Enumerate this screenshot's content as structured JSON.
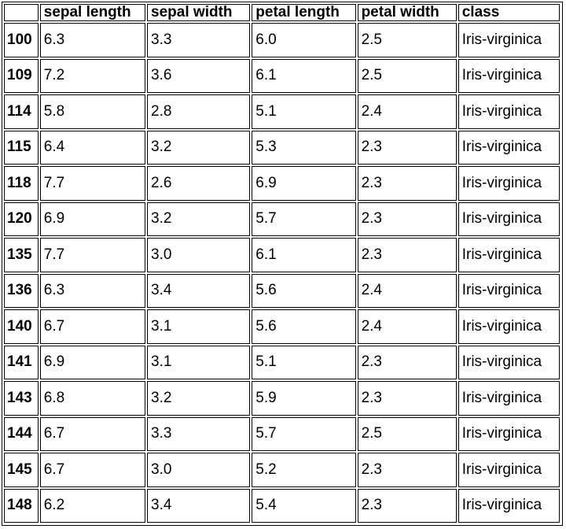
{
  "table": {
    "columns": [
      "",
      "sepal length",
      "sepal width",
      "petal length",
      "petal width",
      "class"
    ],
    "rows": [
      {
        "index": "100",
        "cells": [
          "6.3",
          "3.3",
          "6.0",
          "2.5",
          "Iris-virginica"
        ]
      },
      {
        "index": "109",
        "cells": [
          "7.2",
          "3.6",
          "6.1",
          "2.5",
          "Iris-virginica"
        ]
      },
      {
        "index": "114",
        "cells": [
          "5.8",
          "2.8",
          "5.1",
          "2.4",
          "Iris-virginica"
        ]
      },
      {
        "index": "115",
        "cells": [
          "6.4",
          "3.2",
          "5.3",
          "2.3",
          "Iris-virginica"
        ]
      },
      {
        "index": "118",
        "cells": [
          "7.7",
          "2.6",
          "6.9",
          "2.3",
          "Iris-virginica"
        ]
      },
      {
        "index": "120",
        "cells": [
          "6.9",
          "3.2",
          "5.7",
          "2.3",
          "Iris-virginica"
        ]
      },
      {
        "index": "135",
        "cells": [
          "7.7",
          "3.0",
          "6.1",
          "2.3",
          "Iris-virginica"
        ]
      },
      {
        "index": "136",
        "cells": [
          "6.3",
          "3.4",
          "5.6",
          "2.4",
          "Iris-virginica"
        ]
      },
      {
        "index": "140",
        "cells": [
          "6.7",
          "3.1",
          "5.6",
          "2.4",
          "Iris-virginica"
        ]
      },
      {
        "index": "141",
        "cells": [
          "6.9",
          "3.1",
          "5.1",
          "2.3",
          "Iris-virginica"
        ]
      },
      {
        "index": "143",
        "cells": [
          "6.8",
          "3.2",
          "5.9",
          "2.3",
          "Iris-virginica"
        ]
      },
      {
        "index": "144",
        "cells": [
          "6.7",
          "3.3",
          "5.7",
          "2.5",
          "Iris-virginica"
        ]
      },
      {
        "index": "145",
        "cells": [
          "6.7",
          "3.0",
          "5.2",
          "2.3",
          "Iris-virginica"
        ]
      },
      {
        "index": "148",
        "cells": [
          "6.2",
          "3.4",
          "5.4",
          "2.3",
          "Iris-virginica"
        ]
      }
    ]
  }
}
